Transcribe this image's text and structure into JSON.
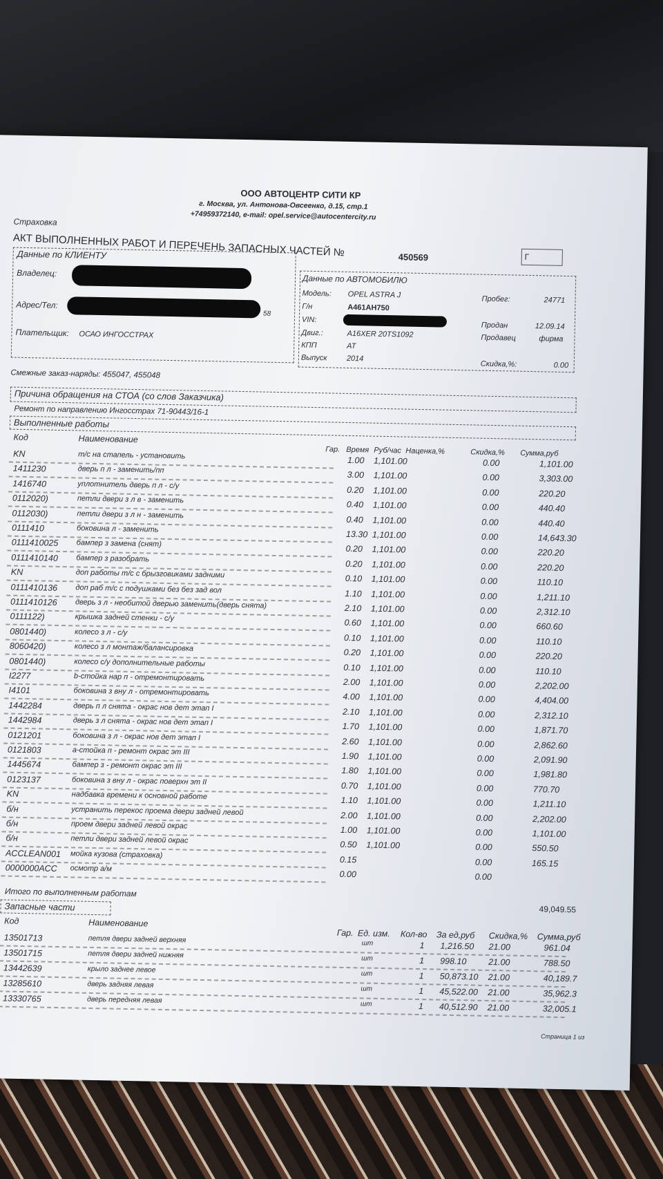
{
  "company": {
    "name": "ООО АВТОЦЕНТР СИТИ КР",
    "address": "г. Москва, ул. Антонова-Овсеенко, д.15, стр.1",
    "contacts": "+74959372140, e-mail: opel.service@autocentercity.ru"
  },
  "doc_type": "Страховка",
  "title": "АКТ ВЫПОЛНЕННЫХ РАБОТ И ПЕРЕЧЕНЬ ЗАПАСНЫХ ЧАСТЕЙ №",
  "number": "450569",
  "corner_mark": "Г",
  "client": {
    "header": "Данные по КЛИЕНТУ",
    "owner_label": "Владелец:",
    "address_label": "Адрес/Тел:",
    "address_tail": "58",
    "payer_label": "Плательщик:",
    "payer": "ОСАО ИНГОССТРАХ"
  },
  "car": {
    "header": "Данные по АВТОМОБИЛЮ",
    "model_label": "Модель:",
    "model": "OPEL ASTRA J",
    "plate_label": "Г/н",
    "plate": "А461АН750",
    "vin_label": "VIN:",
    "engine_label": "Двиг.:",
    "engine": "A16XER 20TS1092",
    "gearbox_label": "КПП",
    "gearbox": "AT",
    "year_label": "Выпуск",
    "year": "2014",
    "mileage_label": "Пробег:",
    "mileage": "24771",
    "sold_label": "Продан",
    "sold": "12.09.14",
    "seller_label": "Продавец",
    "seller": "фирма",
    "discount_label": "Скидка,%:",
    "discount": "0.00"
  },
  "related_orders": "Смежные заказ-наряды: 455047, 455048",
  "reason_header": "Причина обращения на СТОА (со слов Заказчика)",
  "reason": "Ремонт по направлению Ингосстрах 71-90443/16-1",
  "works": {
    "header": "Выполненные работы",
    "columns": [
      "Код",
      "Наименование",
      "Гар.",
      "Время",
      "Руб/час",
      "Наценка,%",
      "Скидка,%",
      "Сумма,руб"
    ],
    "rows": [
      [
        "KN",
        "т/с на стапель - установить",
        "1.00",
        "1,101.00",
        "0.00",
        "1,101.00"
      ],
      [
        "1411230",
        "дверь п л - заменить/пп",
        "3.00",
        "1,101.00",
        "0.00",
        "3,303.00"
      ],
      [
        "1416740",
        "уплотнитель дверь п л - с/у",
        "0.20",
        "1,101.00",
        "0.00",
        "220.20"
      ],
      [
        "0112020)",
        "петли двери з л в - заменить",
        "0.40",
        "1,101.00",
        "0.00",
        "440.40"
      ],
      [
        "0112030)",
        "петли двери з л н - заменить",
        "0.40",
        "1,101.00",
        "0.00",
        "440.40"
      ],
      [
        "0111410",
        "боковина л - заменить",
        "13.30",
        "1,101.00",
        "0.00",
        "14,643.30"
      ],
      [
        "0111410025",
        "бампер з замена (снят)",
        "0.20",
        "1,101.00",
        "0.00",
        "220.20"
      ],
      [
        "0111410140",
        "бампер з разобрать",
        "0.20",
        "1,101.00",
        "0.00",
        "220.20"
      ],
      [
        "KN",
        "доп работы т/с с брызговиками задними",
        "0.10",
        "1,101.00",
        "0.00",
        "110.10"
      ],
      [
        "0111410136",
        "доп раб т/с с подушками без без зад вол",
        "1.10",
        "1,101.00",
        "0.00",
        "1,211.10"
      ],
      [
        "0111410126",
        "дверь з л - необитой дверью заменить(дверь снята)",
        "2.10",
        "1,101.00",
        "0.00",
        "2,312.10"
      ],
      [
        "0111122)",
        "крышка задней стенки - с/у",
        "0.60",
        "1,101.00",
        "0.00",
        "660.60"
      ],
      [
        "0801440)",
        "колесо з л - с/у",
        "0.10",
        "1,101.00",
        "0.00",
        "110.10"
      ],
      [
        "8060420)",
        "колесо з л монтаж/балансировка",
        "0.20",
        "1,101.00",
        "0.00",
        "220.20"
      ],
      [
        "0801440)",
        "колесо с/у дополнительные работы",
        "0.10",
        "1,101.00",
        "0.00",
        "110.10"
      ],
      [
        "I2277",
        "b-стойка нар п - отремонтировать",
        "2.00",
        "1,101.00",
        "0.00",
        "2,202.00"
      ],
      [
        "I4101",
        "боковина з вну л - отремонтировать",
        "4.00",
        "1,101.00",
        "0.00",
        "4,404.00"
      ],
      [
        "1442284",
        "дверь п л снята - окрас нов дет этап I",
        "2.10",
        "1,101.00",
        "0.00",
        "2,312.10"
      ],
      [
        "1442984",
        "дверь з л снята - окрас нов дет этап I",
        "1.70",
        "1,101.00",
        "0.00",
        "1,871.70"
      ],
      [
        "0121201",
        "боковина з л - окрас нов дет этап I",
        "2.60",
        "1,101.00",
        "0.00",
        "2,862.60"
      ],
      [
        "0121803",
        "a-стойка п - ремонт окрас эт III",
        "1.90",
        "1,101.00",
        "0.00",
        "2,091.90"
      ],
      [
        "1445674",
        "бампер з - ремонт окрас эт III",
        "1.80",
        "1,101.00",
        "0.00",
        "1,981.80"
      ],
      [
        "0123137",
        "боковина з вну л - окрас поверхн эт II",
        "0.70",
        "1,101.00",
        "0.00",
        "770.70"
      ],
      [
        "KN",
        "надбавка времени к основной работе",
        "1.10",
        "1,101.00",
        "0.00",
        "1,211.10"
      ],
      [
        "б/н",
        "устранить перекос проема двери задней левой",
        "2.00",
        "1,101.00",
        "0.00",
        "2,202.00"
      ],
      [
        "б/н",
        "проем двери задней левой окрас",
        "1.00",
        "1,101.00",
        "0.00",
        "1,101.00"
      ],
      [
        "б/н",
        "петли двери задней левой окрас",
        "0.50",
        "1,101.00",
        "0.00",
        "550.50"
      ],
      [
        "ACCLEAN001",
        "мойка кузова (страховка)",
        "0.15",
        "",
        "0.00",
        "165.15"
      ],
      [
        "0000000ACC",
        "осмотр а/м",
        "0.00",
        "",
        "0.00",
        ""
      ]
    ],
    "total_label": "Итого по выполненным работам",
    "total": "49,049.55"
  },
  "parts": {
    "header": "Запасные части",
    "columns": [
      "Код",
      "Наименование",
      "Гар.",
      "Ед. изм.",
      "Кол-во",
      "За ед,руб",
      "Скидка,%",
      "Сумма,руб"
    ],
    "rows": [
      [
        "13501713",
        "петля двери задней верхняя",
        "шт",
        "1",
        "1,216.50",
        "21.00",
        "961.04"
      ],
      [
        "13501715",
        "петля двери задней нижняя",
        "шт",
        "1",
        "998.10",
        "21.00",
        "788.50"
      ],
      [
        "13442639",
        "крыло заднее левое",
        "шт",
        "1",
        "50,873.10",
        "21.00",
        "40,189.7"
      ],
      [
        "13285610",
        "дверь задняя левая",
        "шт",
        "1",
        "45,522.00",
        "21.00",
        "35,962.3"
      ],
      [
        "13330765",
        "дверь передняя левая",
        "шт",
        "1",
        "40,512.90",
        "21.00",
        "32,005.1"
      ]
    ]
  },
  "page": "Страница 1 из"
}
